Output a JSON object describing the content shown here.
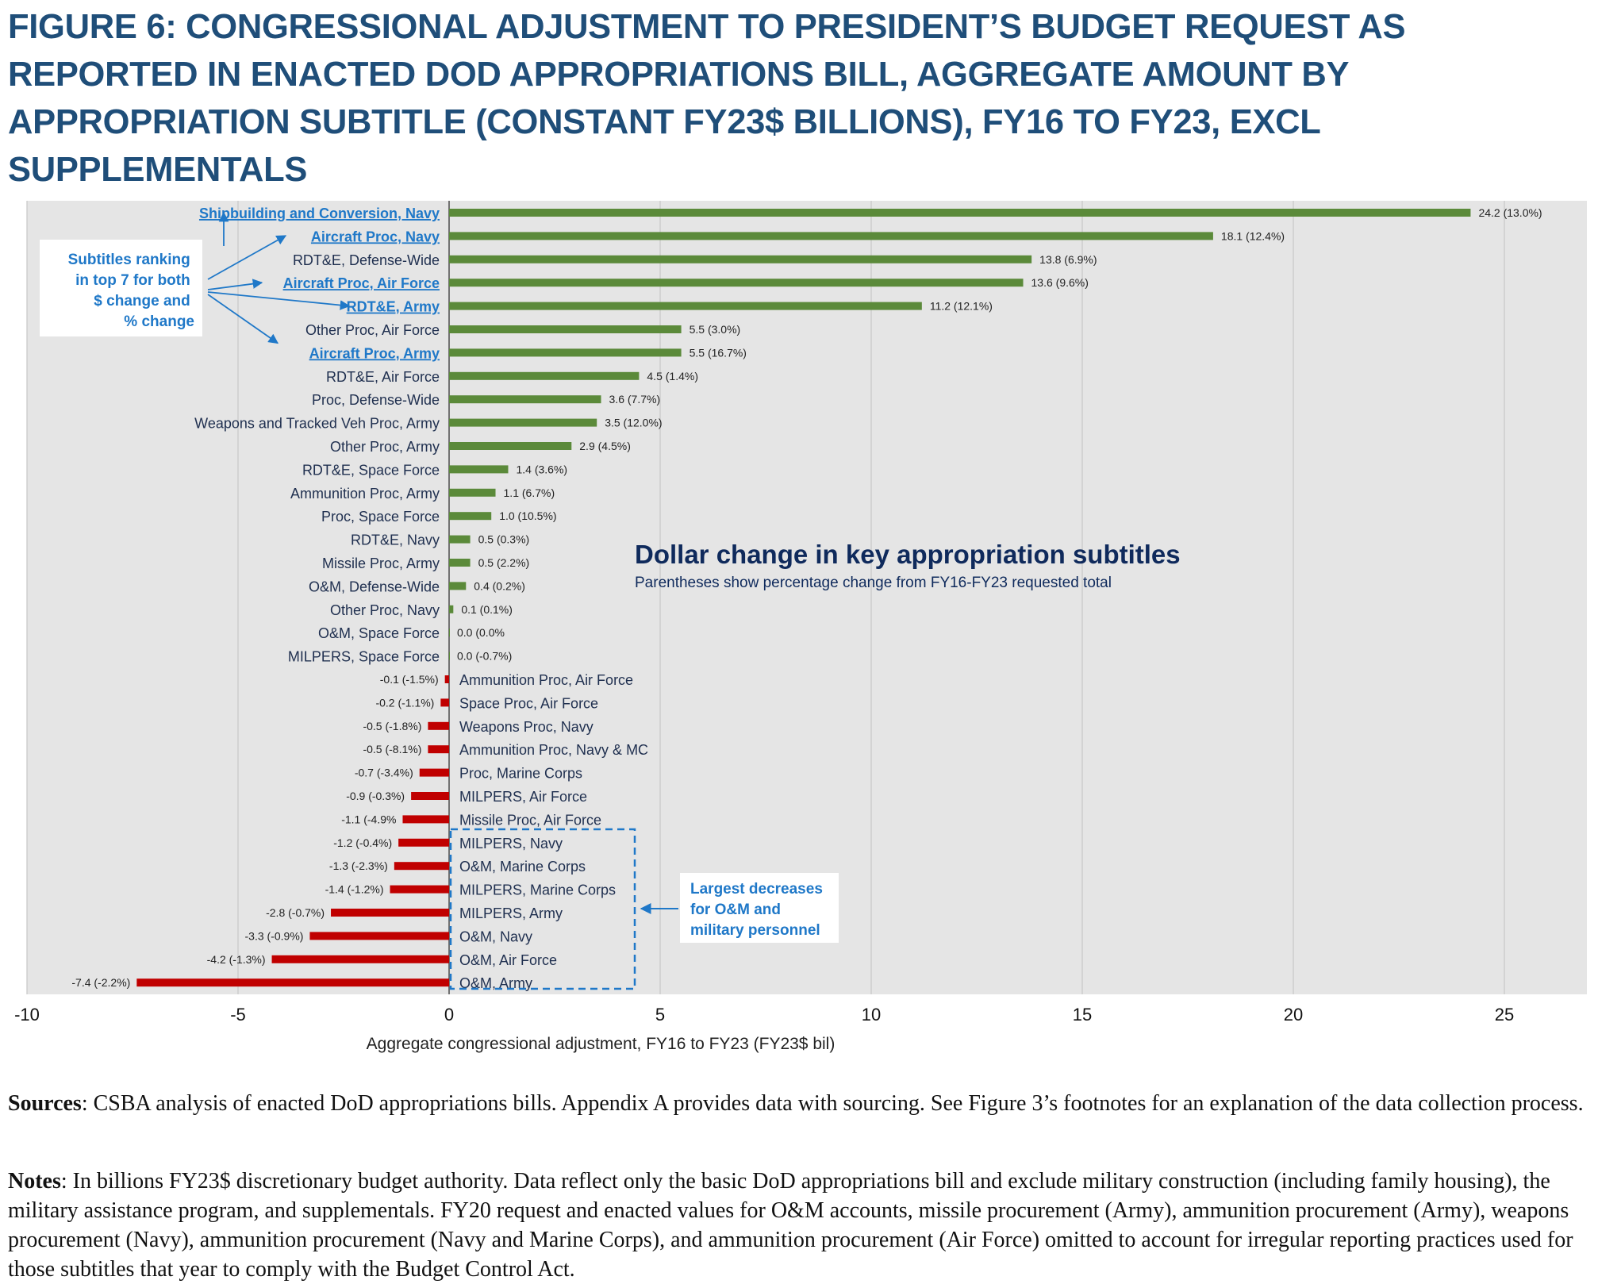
{
  "figure_title": "FIGURE 6: CONGRESSIONAL ADJUSTMENT TO PRESIDENT’S BUDGET REQUEST AS REPORTED IN ENACTED DOD APPROPRIATIONS BILL, AGGREGATE AMOUNT BY APPROPRIATION SUBTITLE (CONSTANT FY23$ BILLIONS), FY16 TO FY23, EXCL SUPPLEMENTALS",
  "colors": {
    "title": "#1f4e79",
    "positive": "#5b8a3a",
    "negative": "#c00000",
    "highlight": "#1f78c8",
    "label": "#1f2f4f",
    "plot_bg": "#e5e5e5",
    "callout_title": "#0f2a5c"
  },
  "chart_data": {
    "type": "bar",
    "orientation": "horizontal",
    "title": "Dollar change in key appropriation subtitles",
    "subtitle": "Parentheses show percentage change from FY16-FY23 requested total",
    "xlabel": "Aggregate congressional adjustment, FY16 to FY23 (FY23$ bil)",
    "ylabel": "",
    "xlim": [
      -10,
      27
    ],
    "xticks": [
      -10,
      -5,
      0,
      5,
      10,
      15,
      20,
      25
    ],
    "grid": true,
    "categories": [
      "Shipbuilding and Conversion, Navy",
      "Aircraft Proc, Navy",
      "RDT&E, Defense-Wide",
      "Aircraft Proc, Air Force",
      "RDT&E, Army",
      "Other Proc, Air Force",
      "Aircraft Proc, Army",
      "RDT&E, Air Force",
      "Proc, Defense-Wide",
      "Weapons and Tracked Veh Proc, Army",
      "Other Proc, Army",
      "RDT&E, Space Force",
      "Ammunition Proc, Army",
      "Proc, Space Force",
      "RDT&E, Navy",
      "Missile Proc, Army",
      "O&M, Defense-Wide",
      "Other Proc, Navy",
      "O&M, Space Force",
      "MILPERS, Space Force",
      "Ammunition Proc, Air Force",
      "Space Proc, Air Force",
      "Weapons Proc, Navy",
      "Ammunition Proc, Navy & MC",
      "Proc, Marine Corps",
      "MILPERS, Air Force",
      "Missile Proc, Air Force",
      "MILPERS, Navy",
      "O&M, Marine Corps",
      "MILPERS, Marine Corps",
      "MILPERS, Army",
      "O&M, Navy",
      "O&M, Air Force",
      "O&M, Army"
    ],
    "values": [
      24.2,
      18.1,
      13.8,
      13.6,
      11.2,
      5.5,
      5.5,
      4.5,
      3.6,
      3.5,
      2.9,
      1.4,
      1.1,
      1.0,
      0.5,
      0.5,
      0.4,
      0.1,
      0.0,
      0.0,
      -0.1,
      -0.2,
      -0.5,
      -0.5,
      -0.7,
      -0.9,
      -1.1,
      -1.2,
      -1.3,
      -1.4,
      -2.8,
      -3.3,
      -4.2,
      -7.4
    ],
    "data_labels": [
      "24.2 (13.0%)",
      "18.1 (12.4%)",
      "13.8 (6.9%)",
      "13.6 (9.6%)",
      "11.2 (12.1%)",
      "5.5 (3.0%)",
      "5.5 (16.7%)",
      "4.5 (1.4%)",
      "3.6 (7.7%)",
      "3.5 (12.0%)",
      "2.9 (4.5%)",
      "1.4 (3.6%)",
      "1.1 (6.7%)",
      "1.0 (10.5%)",
      "0.5 (0.3%)",
      "0.5 (2.2%)",
      "0.4 (0.2%)",
      "0.1 (0.1%)",
      "0.0 (0.0%",
      "0.0 (-0.7%)",
      "-0.1 (-1.5%)",
      "-0.2 (-1.1%)",
      "-0.5 (-1.8%)",
      "-0.5 (-8.1%)",
      "-0.7 (-3.4%)",
      "-0.9 (-0.3%)",
      "-1.1 (-4.9%",
      "-1.2 (-0.4%)",
      "-1.3 (-2.3%)",
      "-1.4 (-1.2%)",
      "-2.8 (-0.7%)",
      "-3.3 (-0.9%)",
      "-4.2 (-1.3%)",
      "-7.4 (-2.2%)"
    ],
    "highlighted": [
      "Shipbuilding and Conversion, Navy",
      "Aircraft Proc, Navy",
      "Aircraft Proc, Air Force",
      "RDT&E, Army",
      "Aircraft Proc, Army"
    ],
    "annotations": {
      "top_ranking": "Subtitles ranking in top 7 for both $ change and % change",
      "top_ranking_lines": [
        "Subtitles ranking",
        "in top 7 for both",
        "$ change and",
        "% change"
      ],
      "decreases": "Largest decreases for O&M and military personnel",
      "decreases_lines": [
        "Largest decreases",
        "for O&M and",
        "military personnel"
      ],
      "decreases_boxed": [
        "MILPERS, Navy",
        "O&M, Marine Corps",
        "MILPERS, Marine Corps",
        "MILPERS, Army",
        "O&M, Navy",
        "O&M, Air Force",
        "O&M, Army"
      ]
    }
  },
  "sources": {
    "label": "Sources",
    "text": ": CSBA analysis of enacted DoD appropriations bills. Appendix A provides data with sourcing. See Figure 3’s footnotes for an explanation of the data collection process."
  },
  "notes": {
    "label": "Notes",
    "text": ": In billions FY23$ discretionary budget authority. Data reflect only the basic DoD appropriations bill and exclude military construction (including family housing), the military assistance program, and supplementals. FY20 request and enacted values for O&M accounts, missile procurement (Army), ammunition procurement (Army), weapons procurement (Navy), ammunition procurement (Navy and Marine Corps), and ammunition procurement (Air Force) omitted to account for irregular reporting practices used for those subtitles that year to comply with the Budget Control Act."
  }
}
